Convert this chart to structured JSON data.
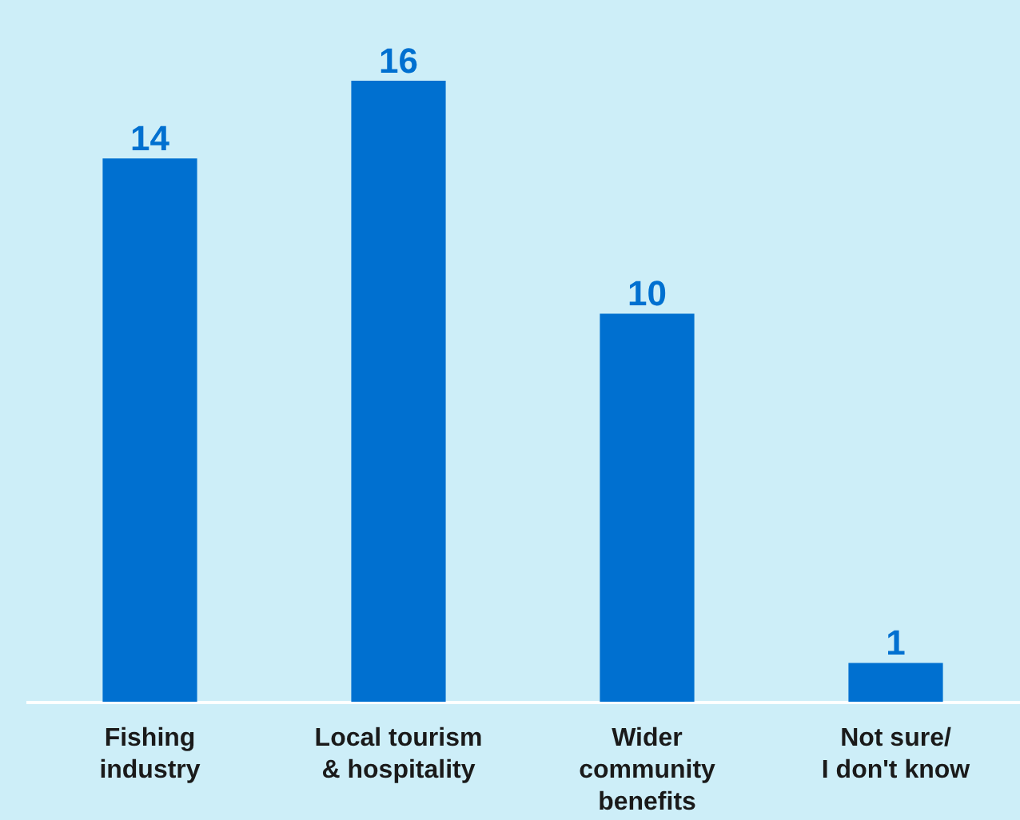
{
  "chart_data": {
    "type": "bar",
    "categories": [
      "Fishing industry",
      "Local tourism & hospitality",
      "Wider community benefits",
      "Not sure/ I don't know"
    ],
    "values": [
      14,
      16,
      10,
      1
    ],
    "color": "#0070d0",
    "data_labels": true
  }
}
